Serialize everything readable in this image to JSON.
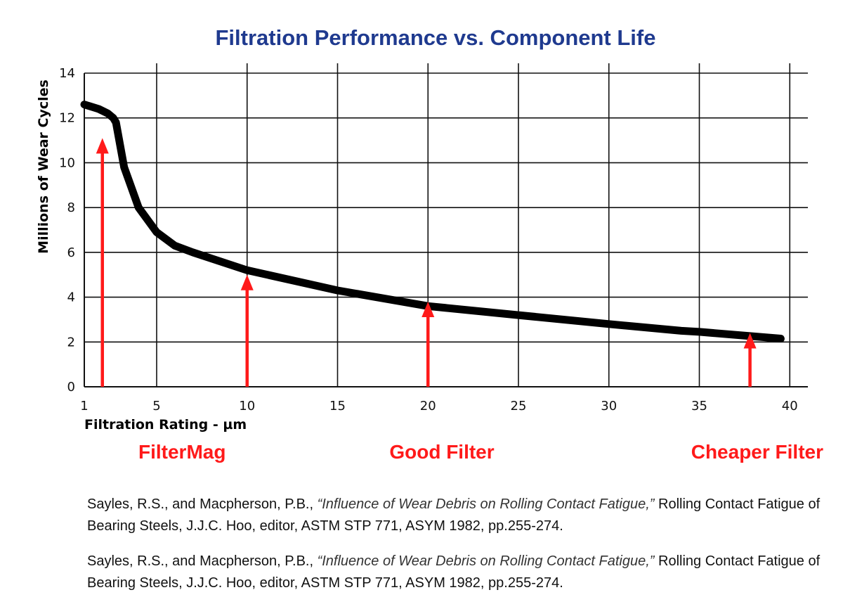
{
  "chart_data": {
    "type": "line",
    "title": "Filtration Performance vs. Component Life",
    "xlabel": "Filtration Rating - µm",
    "ylabel": "Millions of Wear Cycles",
    "xlim": [
      1,
      41
    ],
    "ylim": [
      0,
      14
    ],
    "x_ticks": [
      1,
      5,
      10,
      15,
      20,
      25,
      30,
      35,
      40
    ],
    "y_ticks": [
      0,
      2,
      4,
      6,
      8,
      10,
      12,
      14
    ],
    "grid": true,
    "series": [
      {
        "x": [
          1,
          1.8,
          2.3,
          2.6,
          2.75,
          3.2,
          4,
          5,
          6,
          7,
          10,
          15,
          20,
          25,
          30,
          34,
          35,
          39.5
        ],
        "y": [
          12.6,
          12.4,
          12.2,
          12.0,
          11.8,
          9.8,
          8.0,
          6.9,
          6.3,
          6.0,
          5.2,
          4.3,
          3.6,
          3.2,
          2.8,
          2.5,
          2.45,
          2.15
        ]
      }
    ],
    "annotations": [
      {
        "label": "FilterMag",
        "x": 2,
        "arrow_top_y": 11.1
      },
      {
        "label": "Good Filter",
        "x": 20,
        "arrow_top_y": 3.8
      },
      {
        "label": "Cheaper Filter",
        "x": 37.8,
        "arrow_top_y": 2.4
      },
      {
        "label": "",
        "x": 10,
        "arrow_top_y": 5.0
      }
    ]
  },
  "colors": {
    "title": "#1f3a8f",
    "curve": "#000000",
    "arrow": "#ff1a1a",
    "grid": "#111111"
  },
  "references": [
    {
      "authors": "Sayles, R.S., and Macpherson, P.B., ",
      "title": "“Influence of Wear Debris on Rolling Contact Fatigue,”",
      "rest": " Rolling Contact Fatigue of Bearing Steels, J.J.C. Hoo, editor, ASTM STP 771, ASYM 1982, pp.255-274."
    },
    {
      "authors": "Sayles, R.S., and Macpherson, P.B., ",
      "title": "“Influence of Wear Debris on Rolling Contact Fatigue,”",
      "rest": " Rolling Contact Fatigue of Bearing Steels, J.J.C. Hoo, editor, ASTM STP 771, ASYM 1982, pp.255-274."
    }
  ]
}
